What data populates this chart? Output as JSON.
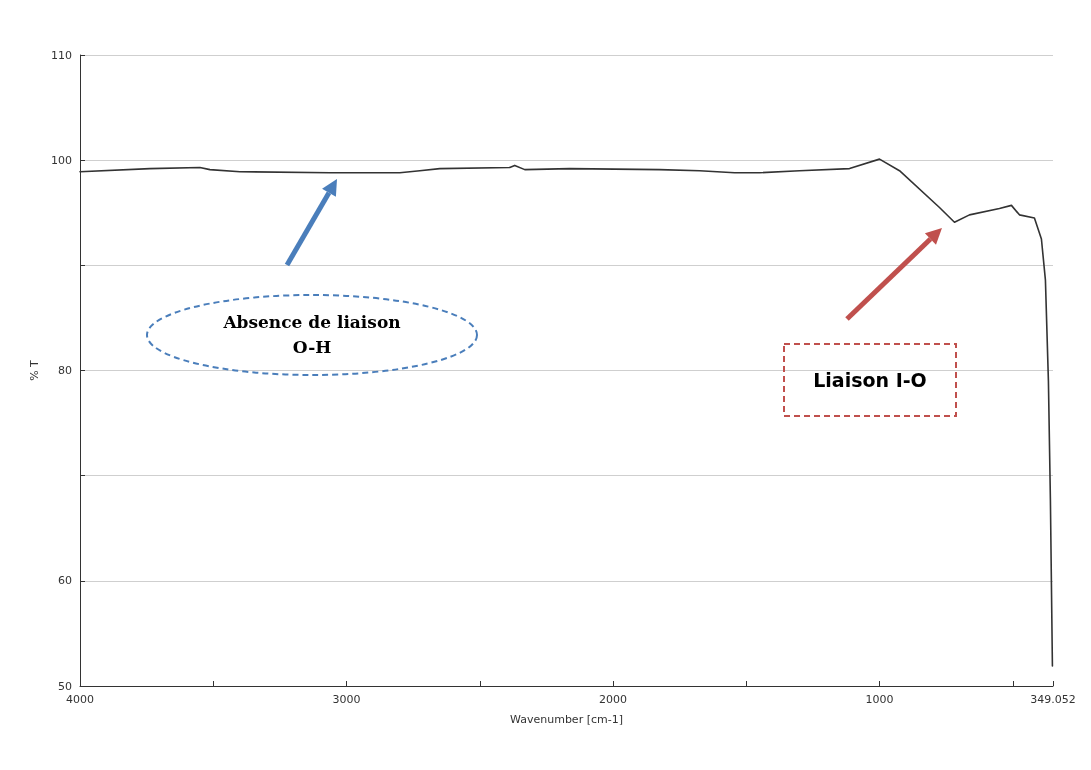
{
  "chart_data": {
    "type": "line",
    "xlabel": "Wavenumber [cm-1]",
    "ylabel": "% T",
    "x": [
      4000,
      3737.5,
      3550,
      3512.5,
      3400,
      3062.5,
      2800,
      2725,
      2650,
      2387.5,
      2368.75,
      2331,
      2162.5,
      1825,
      1675,
      1543.75,
      1450,
      1300,
      1112.5,
      1000,
      925,
      775,
      718.75,
      662.5,
      550,
      505,
      475,
      418.75,
      392.5,
      377.5,
      366.25,
      358.75,
      351.25
    ],
    "series": [
      {
        "color": "#333333",
        "values": [
          98.9,
          99.2,
          99.3,
          99.1,
          98.9,
          98.8,
          98.8,
          99.0,
          99.2,
          99.3,
          99.5,
          99.1,
          99.2,
          99.1,
          99.0,
          98.8,
          98.8,
          99.0,
          99.2,
          100.1,
          99.0,
          95.5,
          94.1,
          94.8,
          95.4,
          95.7,
          94.8,
          94.5,
          92.5,
          88.6,
          79.0,
          67.6,
          51.9
        ]
      }
    ],
    "xlim": [
      4000,
      349.052
    ],
    "xticks": [
      4000,
      {
        "value": 3500,
        "label": null
      },
      3000,
      {
        "value": 2500,
        "label": null
      },
      2000,
      {
        "value": 1500,
        "label": null
      },
      1000,
      {
        "value": 500,
        "label": null
      },
      349.052
    ],
    "ylim": [
      50,
      110
    ],
    "yticks": [
      50,
      60,
      {
        "value": 70,
        "label": null
      },
      80,
      {
        "value": 90,
        "label": null
      },
      100,
      110
    ],
    "grid": "y",
    "marker": "none",
    "line_style": "solid",
    "annotations": [
      "Absence de liaison O-H",
      "Liaison I-O"
    ]
  }
}
